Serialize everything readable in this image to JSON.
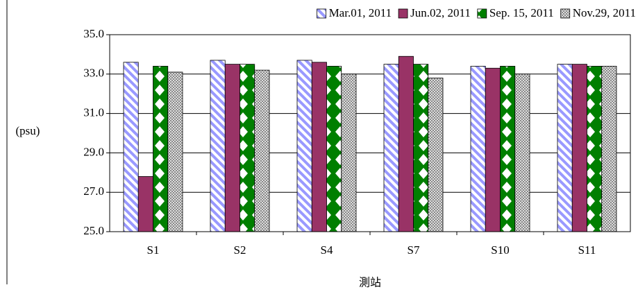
{
  "chart_data": {
    "type": "bar",
    "categories": [
      "S1",
      "S2",
      "S4",
      "S7",
      "S10",
      "S11"
    ],
    "series": [
      {
        "name": "Mar.01, 2011",
        "color": "#9999ff",
        "values": [
          33.6,
          33.7,
          33.7,
          33.5,
          33.4,
          33.5
        ]
      },
      {
        "name": "Jun.02, 2011",
        "color": "#993366",
        "values": [
          27.8,
          33.5,
          33.6,
          33.9,
          33.3,
          33.5
        ]
      },
      {
        "name": "Sep. 15, 2011",
        "color": "#007f00",
        "values": [
          33.4,
          33.5,
          33.4,
          33.5,
          33.4,
          33.4
        ]
      },
      {
        "name": "Nov.29, 2011",
        "color": "#808080",
        "values": [
          33.1,
          33.2,
          33.0,
          32.8,
          33.0,
          33.4
        ]
      }
    ],
    "ylim": [
      25,
      35
    ],
    "yticks": [
      {
        "value": 25,
        "label": "25.0"
      },
      {
        "value": 27,
        "label": "27.0"
      },
      {
        "value": 29,
        "label": "29.0"
      },
      {
        "value": 31,
        "label": "31.0"
      },
      {
        "value": 33,
        "label": "33.0"
      },
      {
        "value": 35,
        "label": "35.0"
      }
    ],
    "y_label": "(psu)",
    "x_label": "測站",
    "grid": true,
    "legend": "top"
  }
}
